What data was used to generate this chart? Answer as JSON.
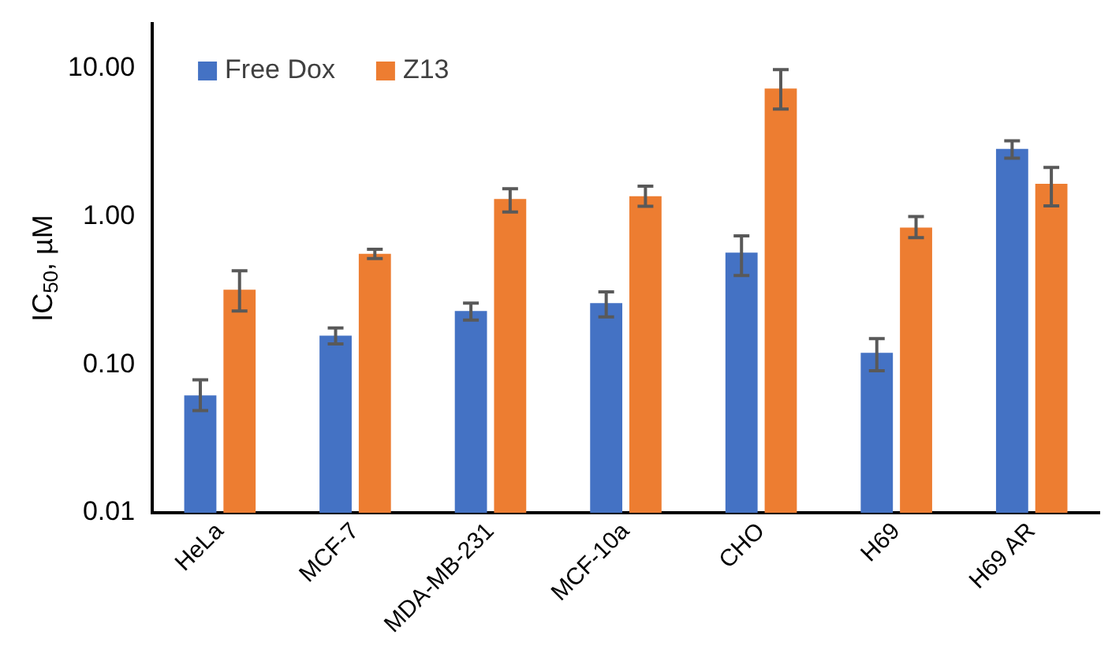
{
  "chart_data": {
    "type": "bar",
    "ylabel": "IC$_{50}$, µM",
    "categories": [
      "HeLa",
      "MCF-7",
      "MDA-MB-231",
      "MCF-10a",
      "CHO",
      "H69",
      "H69 AR"
    ],
    "series": [
      {
        "name": "Free Dox",
        "color": "#4472c4",
        "values": [
          0.062,
          0.157,
          0.23,
          0.26,
          0.57,
          0.12,
          2.86
        ],
        "errors": [
          [
            0.049,
            0.079
          ],
          [
            0.138,
            0.177
          ],
          [
            0.2,
            0.26
          ],
          [
            0.21,
            0.31
          ],
          [
            0.4,
            0.74
          ],
          [
            0.091,
            0.15
          ],
          [
            2.47,
            3.24
          ]
        ]
      },
      {
        "name": "Z13",
        "color": "#ed7d31",
        "values": [
          0.32,
          0.56,
          1.31,
          1.37,
          7.3,
          0.84,
          1.66
        ],
        "errors": [
          [
            0.23,
            0.43
          ],
          [
            0.52,
            0.6
          ],
          [
            1.07,
            1.54
          ],
          [
            1.17,
            1.6
          ],
          [
            5.3,
            9.8
          ],
          [
            0.72,
            1.0
          ],
          [
            1.18,
            2.14
          ]
        ]
      }
    ],
    "log": "y",
    "ylim": [
      0.01,
      20
    ],
    "yticks": [
      {
        "value": 0.01,
        "label": "0.01"
      },
      {
        "value": 0.1,
        "label": "0.10"
      },
      {
        "value": 1,
        "label": "1.00"
      },
      {
        "value": 10,
        "label": "10.00"
      }
    ],
    "grid": false,
    "legend": "top left"
  }
}
